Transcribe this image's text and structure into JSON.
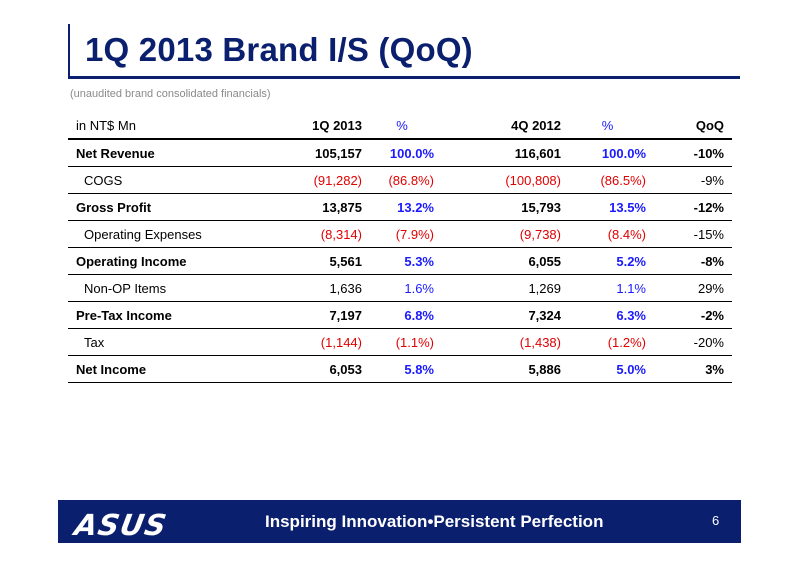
{
  "title": "1Q 2013 Brand I/S (QoQ)",
  "subtitle": "(unaudited brand consolidated financials)",
  "table": {
    "headers": [
      "in NT$ Mn",
      "1Q 2013",
      "%",
      "4Q 2012",
      "%",
      "QoQ"
    ],
    "rows": [
      {
        "label": "Net Revenue",
        "q1": "105,157",
        "q1p": "100.0%",
        "q4": "116,601",
        "q4p": "100.0%",
        "qoq": "-10%"
      },
      {
        "label": "COGS",
        "q1": "(91,282)",
        "q1p": "(86.8%)",
        "q4": "(100,808)",
        "q4p": "(86.5%)",
        "qoq": "-9%"
      },
      {
        "label": "Gross Profit",
        "q1": "13,875",
        "q1p": "13.2%",
        "q4": "15,793",
        "q4p": "13.5%",
        "qoq": "-12%"
      },
      {
        "label": "Operating Expenses",
        "q1": "(8,314)",
        "q1p": "(7.9%)",
        "q4": "(9,738)",
        "q4p": "(8.4%)",
        "qoq": "-15%"
      },
      {
        "label": "Operating Income",
        "q1": "5,561",
        "q1p": "5.3%",
        "q4": "6,055",
        "q4p": "5.2%",
        "qoq": "-8%"
      },
      {
        "label": "Non-OP Items",
        "q1": "1,636",
        "q1p": "1.6%",
        "q4": "1,269",
        "q4p": "1.1%",
        "qoq": "29%"
      },
      {
        "label": "Pre-Tax Income",
        "q1": "7,197",
        "q1p": "6.8%",
        "q4": "7,324",
        "q4p": "6.3%",
        "qoq": "-2%"
      },
      {
        "label": "Tax",
        "q1": "(1,144)",
        "q1p": "(1.1%)",
        "q4": "(1,438)",
        "q4p": "(1.2%)",
        "qoq": "-20%"
      },
      {
        "label": "Net Income",
        "q1": "6,053",
        "q1p": "5.8%",
        "q4": "5,886",
        "q4p": "5.0%",
        "qoq": "3%"
      }
    ]
  },
  "footer": {
    "logo": "ASUS",
    "tagline": "Inspiring Innovation•Persistent Perfection",
    "page_number": "6"
  },
  "colors": {
    "title": "#0a1f6e",
    "percent_blue": "#1a1aff",
    "negative_red": "#e00000",
    "footer_band": "#0a1f6e"
  }
}
